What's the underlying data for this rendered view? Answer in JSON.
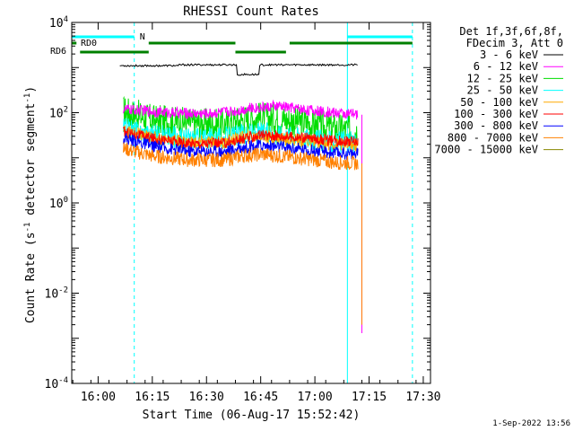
{
  "chart_data": {
    "type": "line",
    "title": "RHESSI Count Rates",
    "xlabel": "Start Time (06-Aug-17 15:52:42)",
    "ylabel": "Count Rate (s⁻¹ detector segment⁻¹)",
    "ylabel_main": "Count Rate (s",
    "ylabel_mid": " detector segment",
    "ylabel_end": ")",
    "ylabel_sup": "-1",
    "y_scale": "log",
    "ylim": [
      0.0001,
      10000
    ],
    "xlim": [
      "15:52:42",
      "17:32:00"
    ],
    "x_ticks": [
      "16:00",
      "16:15",
      "16:30",
      "16:45",
      "17:00",
      "17:15",
      "17:30"
    ],
    "y_tick_base": "10",
    "y_tick_exps": [
      "-4",
      "-2",
      "0",
      "2",
      "4"
    ],
    "grid": false,
    "legend": {
      "placement": "right",
      "header": [
        "Det 1f,3f,6f,8f,",
        "FDecim 3, Att 0"
      ]
    },
    "series": [
      {
        "name": "3 - 6 keV",
        "color": "#000000",
        "points": [
          [
            "16:06",
            1100
          ],
          [
            "16:38",
            1150
          ],
          [
            "16:39",
            700
          ],
          [
            "16:44",
            700
          ],
          [
            "16:45",
            1150
          ],
          [
            "17:12",
            1150
          ]
        ]
      },
      {
        "name": "6 - 12 keV",
        "color": "#ff00ff",
        "points": [
          [
            "16:07",
            120
          ],
          [
            "16:20",
            100
          ],
          [
            "16:30",
            95
          ],
          [
            "16:38",
            110
          ],
          [
            "16:42",
            125
          ],
          [
            "16:50",
            140
          ],
          [
            "17:00",
            110
          ],
          [
            "17:12",
            90
          ]
        ]
      },
      {
        "name": "12 - 25 keV",
        "color": "#00dd00",
        "points": [
          [
            "16:07",
            110
          ],
          [
            "16:15",
            70
          ],
          [
            "16:25",
            60
          ],
          [
            "16:35",
            55
          ],
          [
            "16:40",
            70
          ],
          [
            "16:45",
            80
          ],
          [
            "16:55",
            65
          ],
          [
            "17:05",
            45
          ],
          [
            "17:12",
            40
          ]
        ]
      },
      {
        "name": "25 - 50 keV",
        "color": "#00ffff",
        "points": [
          [
            "16:07",
            45
          ],
          [
            "16:15",
            32
          ],
          [
            "16:25",
            27
          ],
          [
            "16:35",
            27
          ],
          [
            "16:40",
            32
          ],
          [
            "16:45",
            35
          ],
          [
            "16:55",
            30
          ],
          [
            "17:05",
            22
          ],
          [
            "17:12",
            22
          ]
        ]
      },
      {
        "name": "50 - 100 keV",
        "color": "#ffaa00",
        "points": [
          [
            "16:07",
            40
          ],
          [
            "16:15",
            28
          ],
          [
            "16:25",
            22
          ],
          [
            "16:35",
            22
          ],
          [
            "16:40",
            28
          ],
          [
            "16:45",
            30
          ],
          [
            "16:55",
            25
          ],
          [
            "17:05",
            20
          ],
          [
            "17:12",
            19
          ]
        ]
      },
      {
        "name": "100 - 300 keV",
        "color": "#ff0000",
        "points": [
          [
            "16:07",
            38
          ],
          [
            "16:15",
            27
          ],
          [
            "16:25",
            21
          ],
          [
            "16:35",
            21
          ],
          [
            "16:40",
            26
          ],
          [
            "16:45",
            32
          ],
          [
            "16:55",
            29
          ],
          [
            "17:05",
            24
          ],
          [
            "17:12",
            23
          ]
        ]
      },
      {
        "name": "300 - 800 keV",
        "color": "#0000ff",
        "points": [
          [
            "16:07",
            28
          ],
          [
            "16:15",
            18
          ],
          [
            "16:25",
            14
          ],
          [
            "16:35",
            14
          ],
          [
            "16:40",
            17
          ],
          [
            "16:45",
            19
          ],
          [
            "16:55",
            16
          ],
          [
            "17:05",
            13
          ],
          [
            "17:12",
            12
          ]
        ]
      },
      {
        "name": "800 - 7000 keV",
        "color": "#ff8000",
        "points": [
          [
            "16:07",
            16
          ],
          [
            "16:15",
            11
          ],
          [
            "16:25",
            9
          ],
          [
            "16:35",
            9
          ],
          [
            "16:40",
            11
          ],
          [
            "16:45",
            12
          ],
          [
            "16:55",
            10
          ],
          [
            "17:05",
            8
          ],
          [
            "17:12",
            7.5
          ]
        ]
      },
      {
        "name": "7000 - 15000 keV",
        "color": "#888800",
        "points": []
      }
    ],
    "drops": [
      {
        "series": "3 - 6 keV",
        "at": "17:12",
        "to": 1150
      },
      {
        "series": "6 - 12 keV",
        "at": "17:13",
        "to": 0.0013
      },
      {
        "series": "800 - 7000 keV",
        "at": "17:13",
        "to": 0.002
      }
    ],
    "flags": [
      {
        "label": "N",
        "color": "#00ffff",
        "segments": [
          [
            "15:52:42",
            "16:10"
          ],
          [
            "17:09",
            "17:27"
          ]
        ],
        "level": 1
      },
      {
        "label": "RD0",
        "color": "#008000",
        "segments": [
          [
            "15:52:42",
            "15:54"
          ],
          [
            "16:14",
            "16:38"
          ],
          [
            "16:53",
            "17:27"
          ]
        ],
        "level": 2
      },
      {
        "label": "RD6",
        "color": "#008000",
        "segments": [
          [
            "15:55",
            "16:14"
          ],
          [
            "16:38",
            "16:52"
          ]
        ],
        "level": 3
      }
    ],
    "vlines": [
      {
        "at": "15:52:42",
        "style": "solid",
        "color": "#00ffff"
      },
      {
        "at": "16:10",
        "style": "dashed",
        "color": "#00ffff"
      },
      {
        "at": "17:09",
        "style": "solid",
        "color": "#00ffff"
      },
      {
        "at": "17:27",
        "style": "dashed",
        "color": "#00ffff"
      }
    ],
    "footer_date": "1-Sep-2022 13:56"
  }
}
